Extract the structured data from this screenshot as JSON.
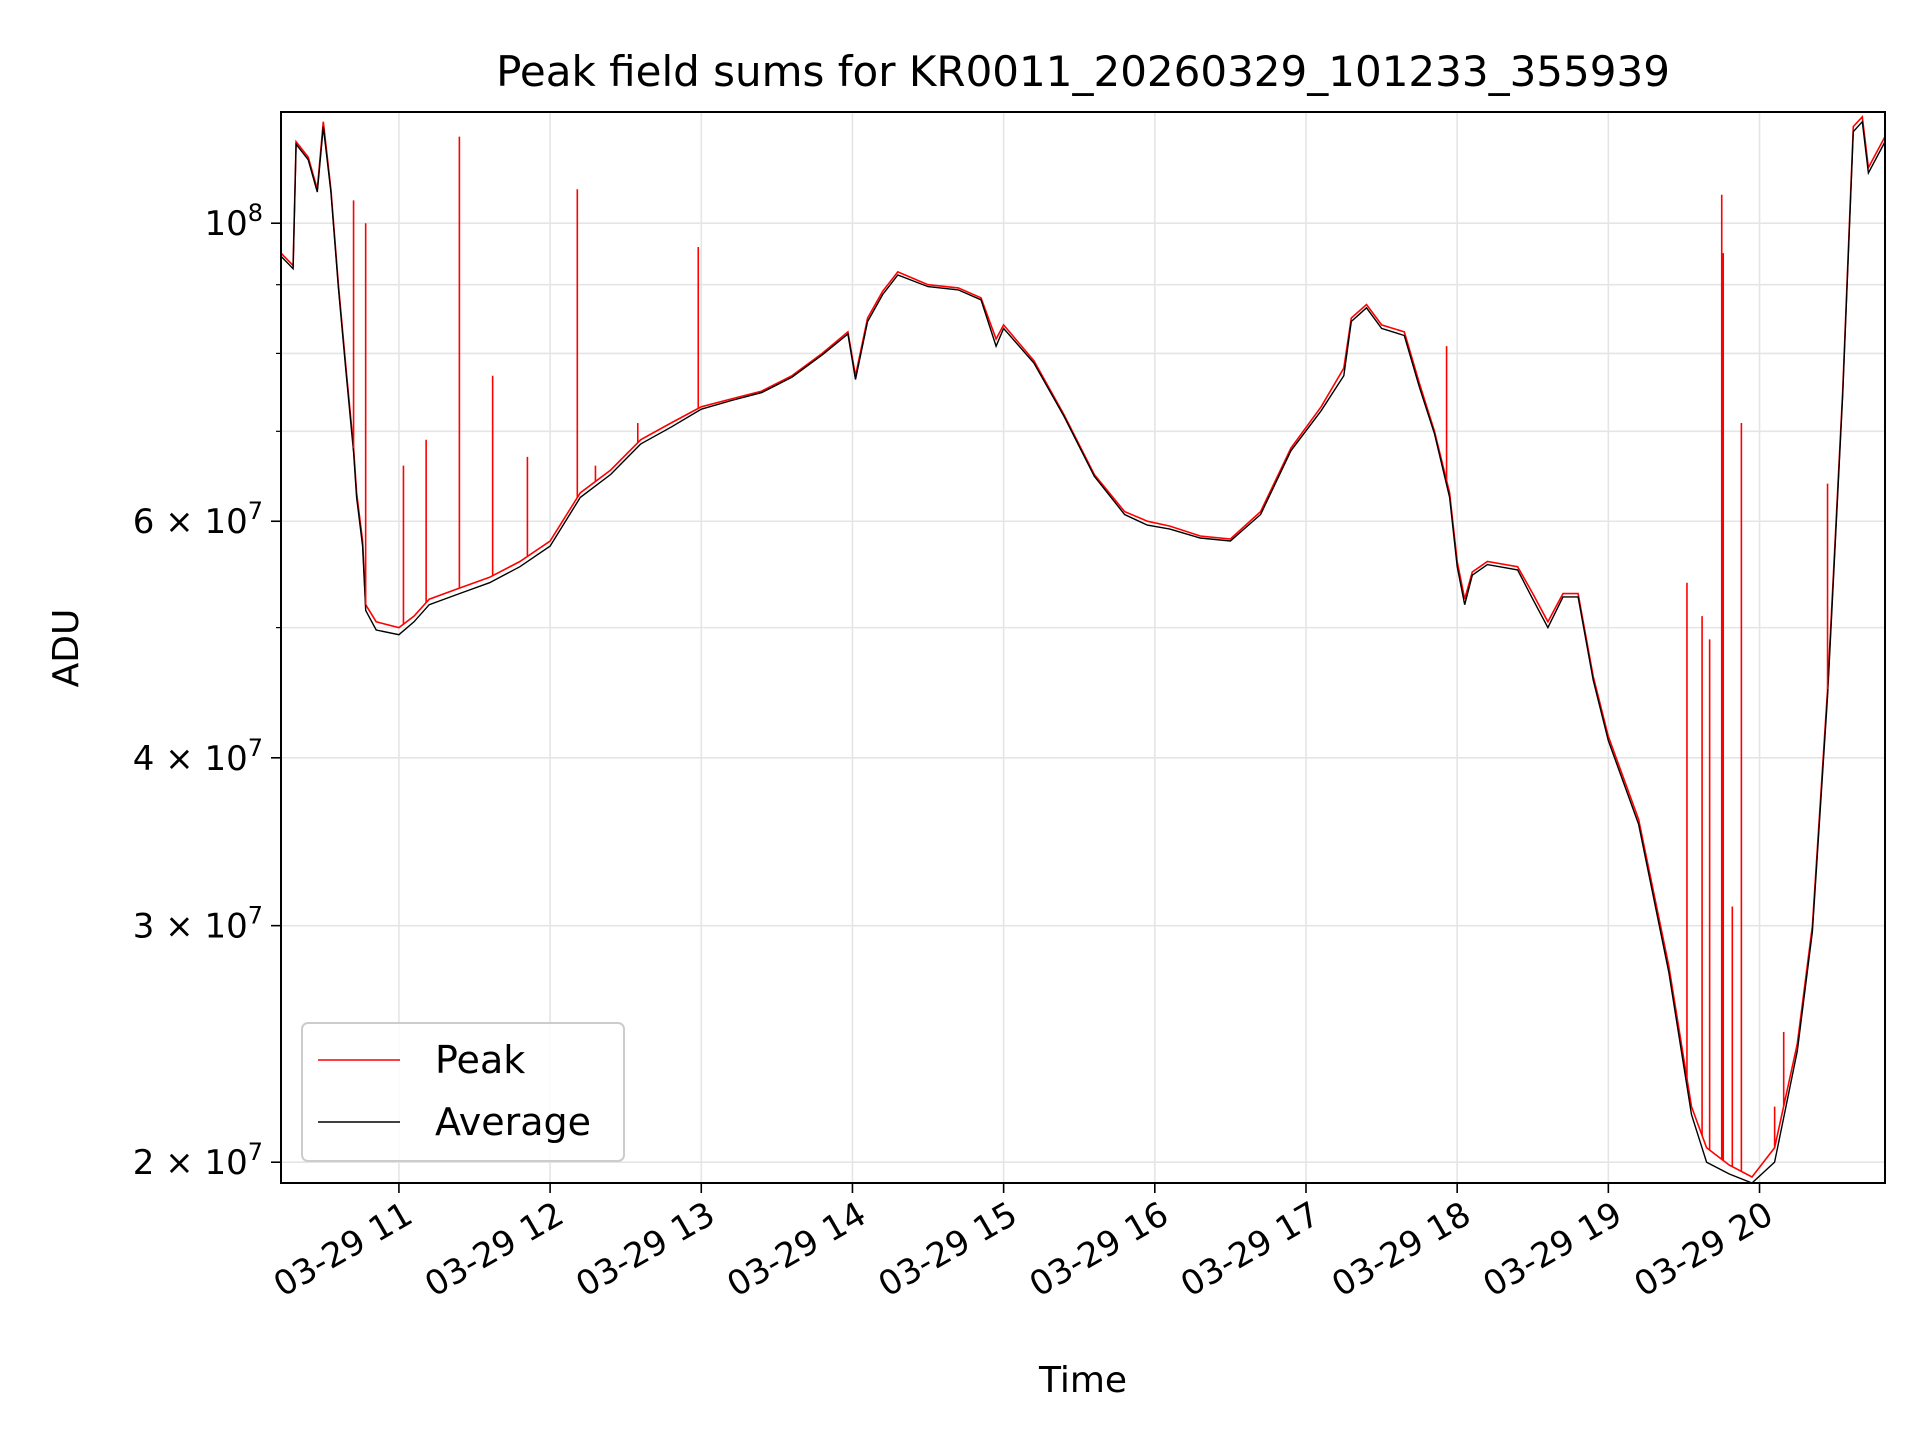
{
  "chart_data": {
    "type": "line",
    "title": "Peak field sums for KR0011_20260329_101233_355939",
    "xlabel": "Time",
    "ylabel": "ADU",
    "yscale": "log",
    "grid": true,
    "legend_position": "bottom-left",
    "x_tick_labels": [
      "03-29 11",
      "03-29 12",
      "03-29 13",
      "03-29 14",
      "03-29 15",
      "03-29 16",
      "03-29 17",
      "03-29 18",
      "03-29 19",
      "03-29 20"
    ],
    "x_ticks_hours": [
      11,
      12,
      13,
      14,
      15,
      16,
      17,
      18,
      19,
      20
    ],
    "xlim_hours": [
      10.22,
      20.83
    ],
    "ylim": [
      19300000,
      121000000
    ],
    "y_major_ticks": [
      {
        "value": 20000000,
        "mantissa": "2",
        "exponent": "7"
      },
      {
        "value": 30000000,
        "mantissa": "3",
        "exponent": "7"
      },
      {
        "value": 40000000,
        "mantissa": "4",
        "exponent": "7"
      },
      {
        "value": 60000000,
        "mantissa": "6",
        "exponent": "7"
      },
      {
        "value": 100000000,
        "mantissa": "",
        "exponent": "8"
      }
    ],
    "y_minor_grid": [
      50000000,
      70000000,
      80000000,
      90000000
    ],
    "series": [
      {
        "name": "Peak",
        "color": "#ff0000",
        "points": [
          [
            10.22,
            95000000.0
          ],
          [
            10.3,
            93000000.0
          ],
          [
            10.32,
            115000000.0
          ],
          [
            10.4,
            112000000.0
          ],
          [
            10.46,
            106000000.0
          ],
          [
            10.5,
            119000000.0
          ],
          [
            10.55,
            106000000.0
          ],
          [
            10.6,
            90000000.0
          ],
          [
            10.65,
            78000000.0
          ],
          [
            10.7,
            68000000.0
          ],
          [
            10.72,
            63000000.0
          ],
          [
            10.76,
            58000000.0
          ],
          [
            10.78,
            52000000.0
          ],
          [
            10.85,
            50500000.0
          ],
          [
            11.0,
            50000000.0
          ],
          [
            11.1,
            51000000.0
          ],
          [
            11.2,
            52500000.0
          ],
          [
            11.4,
            53500000.0
          ],
          [
            11.6,
            54500000.0
          ],
          [
            11.8,
            56000000.0
          ],
          [
            12.0,
            58000000.0
          ],
          [
            12.2,
            63000000.0
          ],
          [
            12.4,
            65500000.0
          ],
          [
            12.6,
            69000000.0
          ],
          [
            12.8,
            71000000.0
          ],
          [
            13.0,
            73000000.0
          ],
          [
            13.2,
            74000000.0
          ],
          [
            13.4,
            75000000.0
          ],
          [
            13.6,
            77000000.0
          ],
          [
            13.8,
            80000000.0
          ],
          [
            13.97,
            83000000.0
          ],
          [
            14.02,
            77000000.0
          ],
          [
            14.1,
            85000000.0
          ],
          [
            14.2,
            89000000.0
          ],
          [
            14.3,
            92000000.0
          ],
          [
            14.5,
            90000000.0
          ],
          [
            14.7,
            89500000.0
          ],
          [
            14.85,
            88000000.0
          ],
          [
            14.95,
            82000000.0
          ],
          [
            15.0,
            84000000.0
          ],
          [
            15.2,
            79000000.0
          ],
          [
            15.4,
            72000000.0
          ],
          [
            15.6,
            65000000.0
          ],
          [
            15.8,
            61000000.0
          ],
          [
            15.95,
            60000000.0
          ],
          [
            16.1,
            59500000.0
          ],
          [
            16.3,
            58500000.0
          ],
          [
            16.5,
            58200000.0
          ],
          [
            16.7,
            61000000.0
          ],
          [
            16.9,
            68000000.0
          ],
          [
            17.1,
            73000000.0
          ],
          [
            17.25,
            78000000.0
          ],
          [
            17.3,
            85000000.0
          ],
          [
            17.4,
            87000000.0
          ],
          [
            17.5,
            84000000.0
          ],
          [
            17.65,
            83000000.0
          ],
          [
            17.75,
            76000000.0
          ],
          [
            17.85,
            70000000.0
          ],
          [
            17.95,
            63000000.0
          ],
          [
            18.0,
            56000000.0
          ],
          [
            18.05,
            52500000.0
          ],
          [
            18.1,
            55000000.0
          ],
          [
            18.2,
            56000000.0
          ],
          [
            18.4,
            55500000.0
          ],
          [
            18.5,
            53000000.0
          ],
          [
            18.6,
            50500000.0
          ],
          [
            18.7,
            53000000.0
          ],
          [
            18.8,
            53000000.0
          ],
          [
            18.9,
            46000000.0
          ],
          [
            19.0,
            41500000.0
          ],
          [
            19.2,
            36000000.0
          ],
          [
            19.4,
            28000000.0
          ],
          [
            19.55,
            22000000.0
          ],
          [
            19.65,
            20500000.0
          ],
          [
            19.8,
            19900000.0
          ],
          [
            19.95,
            19500000.0
          ],
          [
            20.1,
            20500000.0
          ],
          [
            20.25,
            24500000.0
          ],
          [
            20.35,
            30000000.0
          ],
          [
            20.45,
            45000000.0
          ],
          [
            20.55,
            75000000.0
          ],
          [
            20.62,
            118000000.0
          ],
          [
            20.68,
            120000000.0
          ],
          [
            20.72,
            110000000.0
          ],
          [
            20.83,
            116000000.0
          ]
        ]
      },
      {
        "name": "Average",
        "color": "#000000",
        "points": [
          [
            10.22,
            94500000.0
          ],
          [
            10.3,
            92500000.0
          ],
          [
            10.32,
            114500000.0
          ],
          [
            10.4,
            111500000.0
          ],
          [
            10.46,
            105500000.0
          ],
          [
            10.5,
            118000000.0
          ],
          [
            10.55,
            105500000.0
          ],
          [
            10.6,
            89500000.0
          ],
          [
            10.65,
            77500000.0
          ],
          [
            10.7,
            67500000.0
          ],
          [
            10.72,
            62500000.0
          ],
          [
            10.76,
            57500000.0
          ],
          [
            10.78,
            51500000.0
          ],
          [
            10.85,
            49800000.0
          ],
          [
            11.0,
            49400000.0
          ],
          [
            11.1,
            50500000.0
          ],
          [
            11.2,
            52000000.0
          ],
          [
            11.4,
            53000000.0
          ],
          [
            11.6,
            54000000.0
          ],
          [
            11.8,
            55500000.0
          ],
          [
            12.0,
            57500000.0
          ],
          [
            12.2,
            62500000.0
          ],
          [
            12.4,
            65000000.0
          ],
          [
            12.6,
            68500000.0
          ],
          [
            12.8,
            70500000.0
          ],
          [
            13.0,
            72700000.0
          ],
          [
            13.2,
            73800000.0
          ],
          [
            13.4,
            74800000.0
          ],
          [
            13.6,
            76800000.0
          ],
          [
            13.8,
            79800000.0
          ],
          [
            13.97,
            82700000.0
          ],
          [
            14.02,
            76500000.0
          ],
          [
            14.1,
            84500000.0
          ],
          [
            14.2,
            88500000.0
          ],
          [
            14.3,
            91500000.0
          ],
          [
            14.5,
            89700000.0
          ],
          [
            14.7,
            89200000.0
          ],
          [
            14.85,
            87700000.0
          ],
          [
            14.95,
            81000000.0
          ],
          [
            15.0,
            83500000.0
          ],
          [
            15.2,
            78700000.0
          ],
          [
            15.4,
            71800000.0
          ],
          [
            15.6,
            64800000.0
          ],
          [
            15.8,
            60700000.0
          ],
          [
            15.95,
            59600000.0
          ],
          [
            16.1,
            59200000.0
          ],
          [
            16.3,
            58300000.0
          ],
          [
            16.5,
            58000000.0
          ],
          [
            16.7,
            60700000.0
          ],
          [
            16.9,
            67700000.0
          ],
          [
            17.1,
            72500000.0
          ],
          [
            17.25,
            77000000.0
          ],
          [
            17.3,
            84500000.0
          ],
          [
            17.4,
            86500000.0
          ],
          [
            17.5,
            83500000.0
          ],
          [
            17.65,
            82500000.0
          ],
          [
            17.75,
            75500000.0
          ],
          [
            17.85,
            69700000.0
          ],
          [
            17.95,
            62500000.0
          ],
          [
            18.0,
            55500000.0
          ],
          [
            18.05,
            52000000.0
          ],
          [
            18.1,
            54700000.0
          ],
          [
            18.2,
            55700000.0
          ],
          [
            18.4,
            55200000.0
          ],
          [
            18.5,
            52500000.0
          ],
          [
            18.6,
            50000000.0
          ],
          [
            18.7,
            52700000.0
          ],
          [
            18.8,
            52700000.0
          ],
          [
            18.9,
            45700000.0
          ],
          [
            19.0,
            41200000.0
          ],
          [
            19.2,
            35700000.0
          ],
          [
            19.4,
            27700000.0
          ],
          [
            19.55,
            21700000.0
          ],
          [
            19.65,
            20000000.0
          ],
          [
            19.8,
            19600000.0
          ],
          [
            19.95,
            19300000.0
          ],
          [
            20.1,
            20000000.0
          ],
          [
            20.25,
            24200000.0
          ],
          [
            20.35,
            29700000.0
          ],
          [
            20.45,
            44500000.0
          ],
          [
            20.55,
            74500000.0
          ],
          [
            20.62,
            117000000.0
          ],
          [
            20.68,
            119000000.0
          ],
          [
            20.72,
            109000000.0
          ],
          [
            20.83,
            115000000.0
          ]
        ]
      }
    ],
    "peak_spikes": [
      [
        10.7,
        104000000.0
      ],
      [
        10.78,
        100000000.0
      ],
      [
        11.03,
        66000000.0
      ],
      [
        11.18,
        69000000.0
      ],
      [
        11.4,
        116000000.0
      ],
      [
        11.62,
        77000000.0
      ],
      [
        11.85,
        67000000.0
      ],
      [
        12.18,
        106000000.0
      ],
      [
        12.3,
        66000000.0
      ],
      [
        12.58,
        71000000.0
      ],
      [
        12.98,
        96000000.0
      ],
      [
        17.93,
        81000000.0
      ],
      [
        19.52,
        54000000.0
      ],
      [
        19.62,
        51000000.0
      ],
      [
        19.67,
        49000000.0
      ],
      [
        19.75,
        105000000.0
      ],
      [
        19.76,
        95000000.0
      ],
      [
        19.82,
        31000000.0
      ],
      [
        19.88,
        71000000.0
      ],
      [
        20.1,
        22000000.0
      ],
      [
        20.16,
        25000000.0
      ],
      [
        20.45,
        64000000.0
      ]
    ]
  },
  "legend": {
    "items": [
      {
        "label": "Peak",
        "color": "#ff0000"
      },
      {
        "label": "Average",
        "color": "#000000"
      }
    ]
  }
}
